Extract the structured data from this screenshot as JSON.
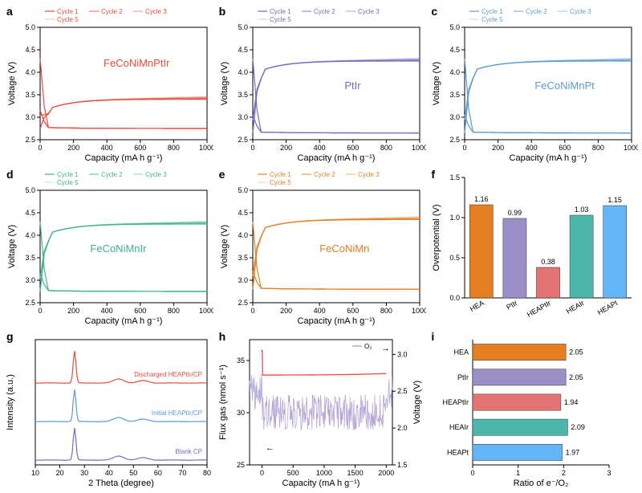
{
  "panels": {
    "a": {
      "label": "a",
      "color": "#e74c3c",
      "sample": "FeCoNiMnPtIr",
      "plateau_charge": 3.4,
      "plateau_discharge": 2.75,
      "legend": [
        "Cycle 1",
        "Cycle 2",
        "Cycle 3",
        "Cycle 5"
      ],
      "xlim": [
        0,
        1000
      ],
      "ylim": [
        2.5,
        5.0
      ],
      "xticks": [
        0,
        200,
        400,
        600,
        800,
        1000
      ],
      "yticks": [
        2.5,
        3.0,
        3.5,
        4.0,
        4.5,
        5.0
      ],
      "xlabel": "Capacity (mA h g⁻¹)",
      "ylabel": "Voltage (V)",
      "sample_pos": [
        0.38,
        0.35
      ],
      "sample_color": "#e74c3c"
    },
    "b": {
      "label": "b",
      "color": "#7b68c4",
      "sample": "PtIr",
      "plateau_charge": 4.25,
      "plateau_discharge": 2.65,
      "legend": [
        "Cycle 1",
        "Cycle 2",
        "Cycle 3",
        "Cycle 5"
      ],
      "xlim": [
        0,
        1000
      ],
      "ylim": [
        2.5,
        5.0
      ],
      "xticks": [
        0,
        200,
        400,
        600,
        800,
        1000
      ],
      "yticks": [
        2.5,
        3.0,
        3.5,
        4.0,
        4.5,
        5.0
      ],
      "xlabel": "Capacity (mA h g⁻¹)",
      "ylabel": "Voltage (V)",
      "sample_pos": [
        0.55,
        0.55
      ],
      "sample_color": "#7b68c4"
    },
    "c": {
      "label": "c",
      "color": "#5b9bd5",
      "sample": "FeCoNiMnPt",
      "plateau_charge": 4.25,
      "plateau_discharge": 2.65,
      "legend": [
        "Cycle 1",
        "Cycle 2",
        "Cycle 3",
        "Cycle 5"
      ],
      "xlim": [
        0,
        1000
      ],
      "ylim": [
        2.5,
        5.0
      ],
      "xticks": [
        0,
        200,
        400,
        600,
        800,
        1000
      ],
      "yticks": [
        2.5,
        3.0,
        3.5,
        4.0,
        4.5,
        5.0
      ],
      "xlabel": "Capacity (mA h g⁻¹)",
      "ylabel": "Voltage (V)",
      "sample_pos": [
        0.42,
        0.55
      ],
      "sample_color": "#5b9bd5"
    },
    "d": {
      "label": "d",
      "color": "#3eb489",
      "sample": "FeCoNiMnIr",
      "plateau_charge": 4.25,
      "plateau_discharge": 2.75,
      "legend": [
        "Cycle 1",
        "Cycle 2",
        "Cycle 3",
        "Cycle 5"
      ],
      "xlim": [
        0,
        1000
      ],
      "ylim": [
        2.5,
        5.0
      ],
      "xticks": [
        0,
        200,
        400,
        600,
        800,
        1000
      ],
      "yticks": [
        2.5,
        3.0,
        3.5,
        4.0,
        4.5,
        5.0
      ],
      "xlabel": "Capacity (mA h g⁻¹)",
      "ylabel": "Voltage (V)",
      "sample_pos": [
        0.3,
        0.55
      ],
      "sample_color": "#3eb489"
    },
    "e": {
      "label": "e",
      "color": "#e67e22",
      "sample": "FeCoNiMn",
      "plateau_charge": 4.35,
      "plateau_discharge": 2.8,
      "legend": [
        "Cycle 1",
        "Cycle 2",
        "Cycle 3",
        "Cycle 5"
      ],
      "xlim": [
        0,
        1000
      ],
      "ylim": [
        2.5,
        5.0
      ],
      "xticks": [
        0,
        200,
        400,
        600,
        800,
        1000
      ],
      "yticks": [
        2.5,
        3.0,
        3.5,
        4.0,
        4.5,
        5.0
      ],
      "xlabel": "Capacity (mA h g⁻¹)",
      "ylabel": "Voltage (V)",
      "sample_pos": [
        0.4,
        0.55
      ],
      "sample_color": "#e67e22"
    },
    "f": {
      "label": "f",
      "type": "bar",
      "categories": [
        "HEA",
        "PtIr",
        "HEAPtIr",
        "HEAIr",
        "HEAPt"
      ],
      "values": [
        1.16,
        0.99,
        0.38,
        1.03,
        1.15
      ],
      "colors": [
        "#e67e22",
        "#9b8fc9",
        "#e57373",
        "#4db6ac",
        "#64b5f6"
      ],
      "ylim": [
        0,
        1.5
      ],
      "yticks": [
        0,
        0.5,
        1.0,
        1.5
      ],
      "ylabel": "Overpotential (V)"
    },
    "g": {
      "label": "g",
      "type": "xrd",
      "traces": [
        {
          "label": "Discharged HEAPtIr/CP",
          "color": "#e74c3c",
          "offset": 2.0
        },
        {
          "label": "Initial HEAPtIr/CP",
          "color": "#5b9bd5",
          "offset": 1.0
        },
        {
          "label": "Blank CP",
          "color": "#7b68c4",
          "offset": 0.0
        }
      ],
      "xlim": [
        10,
        80
      ],
      "xticks": [
        10,
        20,
        30,
        40,
        50,
        60,
        70,
        80
      ],
      "xlabel": "2 Theta (degree)",
      "ylabel": "Intensity (a.u.)",
      "peak_pos": 26
    },
    "h": {
      "label": "h",
      "type": "dems",
      "flux_color": "#b4a7d6",
      "voltage_color": "#e74c3c",
      "legend_label": "O₂",
      "xlim": [
        -200,
        2100
      ],
      "xticks": [
        0,
        500,
        1000,
        1500,
        2000
      ],
      "ylim_left": [
        25,
        37
      ],
      "yticks_left": [
        25,
        30,
        35
      ],
      "ylim_right": [
        1.5,
        3.2
      ],
      "yticks_right": [
        1.5,
        2.0,
        2.5,
        3.0
      ],
      "xlabel": "Capacity (mA h g⁻¹)",
      "ylabel_left": "Flux gas (nmol s⁻¹)",
      "ylabel_right": "Voltage (V)"
    },
    "i": {
      "label": "i",
      "type": "hbar",
      "categories": [
        "HEA",
        "PtIr",
        "HEAPtIr",
        "HEAIr",
        "HEAPt"
      ],
      "values": [
        2.05,
        2.05,
        1.94,
        2.09,
        1.97
      ],
      "colors": [
        "#e67e22",
        "#9b8fc9",
        "#e57373",
        "#4db6ac",
        "#64b5f6"
      ],
      "xlim": [
        0,
        3
      ],
      "xticks": [
        0,
        1,
        2,
        3
      ],
      "xlabel": "Ratio of e⁻/O₂"
    }
  },
  "plot_style": {
    "bg": "#ffffff",
    "axis_color": "#000000",
    "tick_fontsize": 9,
    "label_fontsize": 11
  }
}
